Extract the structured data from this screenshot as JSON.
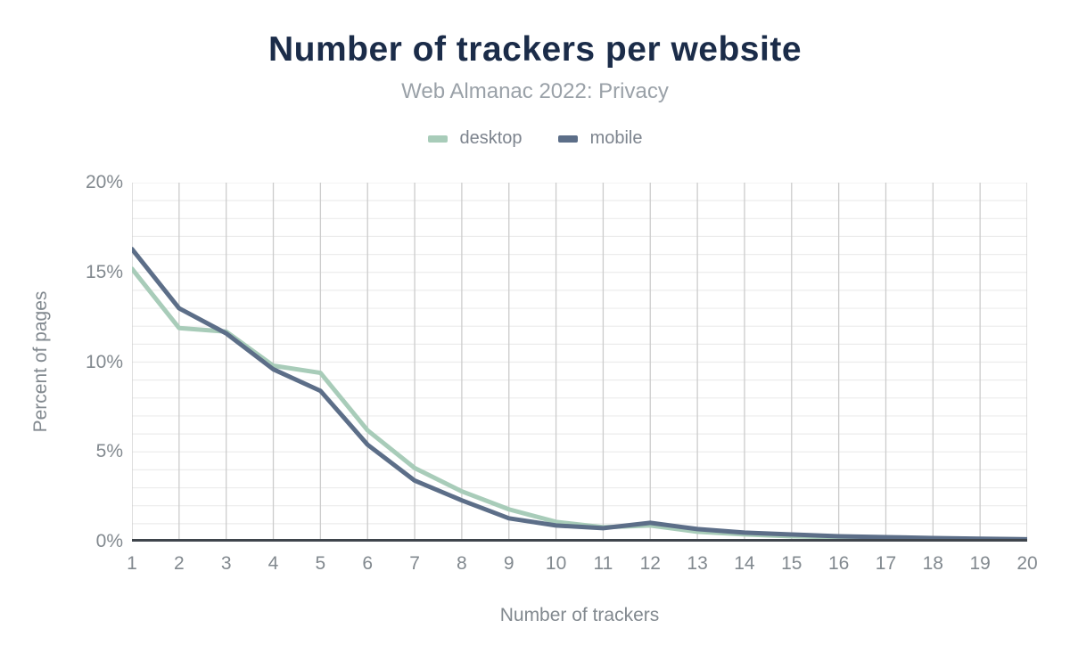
{
  "header": {
    "title": "Number of trackers per website",
    "subtitle": "Web Almanac 2022: Privacy"
  },
  "colors": {
    "title_text": "#1b2c49",
    "subtitle_text": "#9aa1a8",
    "axis_text": "#82898f",
    "legend_text": "#7d848e",
    "grid_vertical": "#cccccc",
    "grid_horizontal": "#ececec",
    "axis_line": "#3f454c",
    "desktop": "#a8ccb9",
    "mobile": "#5c6e88"
  },
  "chart_data": {
    "type": "line",
    "title": "Number of trackers per website",
    "subtitle": "Web Almanac 2022: Privacy",
    "xlabel": "Number of trackers",
    "ylabel": "Percent of pages",
    "x": [
      1,
      2,
      3,
      4,
      5,
      6,
      7,
      8,
      9,
      10,
      11,
      12,
      13,
      14,
      15,
      16,
      17,
      18,
      19,
      20
    ],
    "series": [
      {
        "name": "desktop",
        "color": "#a8ccb9",
        "values": [
          15.2,
          11.9,
          11.7,
          9.8,
          9.4,
          6.2,
          4.1,
          2.8,
          1.8,
          1.1,
          0.8,
          0.9,
          0.55,
          0.4,
          0.3,
          0.25,
          0.2,
          0.17,
          0.14,
          0.12
        ]
      },
      {
        "name": "mobile",
        "color": "#5c6e88",
        "values": [
          16.3,
          13.0,
          11.6,
          9.6,
          8.4,
          5.4,
          3.4,
          2.3,
          1.3,
          0.9,
          0.75,
          1.05,
          0.7,
          0.5,
          0.4,
          0.3,
          0.25,
          0.2,
          0.16,
          0.13
        ]
      }
    ],
    "ylim": [
      0,
      20
    ],
    "y_ticks": [
      {
        "value": 0,
        "label": "0%"
      },
      {
        "value": 5,
        "label": "5%"
      },
      {
        "value": 10,
        "label": "10%"
      },
      {
        "value": 15,
        "label": "15%"
      },
      {
        "value": 20,
        "label": "20%"
      }
    ],
    "y_minor_step": 1,
    "grid": true,
    "legend_position": "top"
  }
}
